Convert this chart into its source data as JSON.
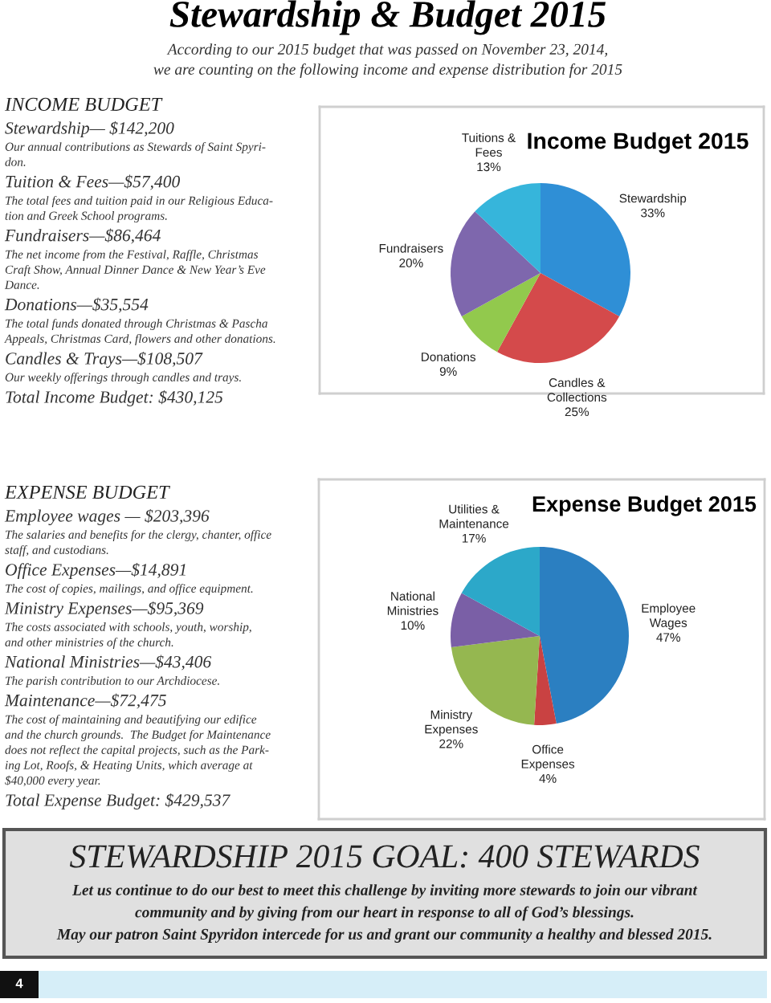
{
  "chart_data": [
    {
      "type": "other",
      "title": "Stewardship & Budget 2015",
      "subtitle": "According to our 2015 budget that was passed on November 23, 2014,\nwe are counting on the following income and expense distribution for 2015",
      "xlabel": "INCOME BUDGET",
      "annotations": [
        "Stewardship— $142,200",
        "Our annual contributions as Stewards of Saint Spyri-\ndon.",
        "Tuition & Fees—$57,400",
        "The total fees and tuition paid in our Religious Educa-\ntion and Greek School programs.",
        "Fundraisers—$86,464",
        "The net income from the Festival, Raffle, Christmas\nCraft Show, Annual Dinner Dance & New Year’s Eve\nDance.",
        "Donations—$35,554",
        "The total funds donated through Christmas & Pascha\nAppeals, Christmas Card, flowers and other donations.",
        "Candles & Trays—$108,507",
        "Our weekly offerings through candles and trays.",
        "Total Income Budget: $430,125"
      ]
    },
    {
      "type": "pie",
      "title": "Income Budget 2015",
      "categories": [
        "Stewardship",
        "Candles &\nCollections",
        "Donations",
        "Fundraisers",
        "Tuitions &\nFees"
      ],
      "values": [
        33,
        25,
        9,
        20,
        13
      ],
      "value_labels": [
        "33%",
        "25%",
        "9%",
        "20%",
        "13%"
      ],
      "colors": [
        "#2f8fd6",
        "#d44a4b",
        "#92c94d",
        "#7e67ad",
        "#36b5db"
      ]
    },
    {
      "type": "other",
      "xlabel": "EXPENSE BUDGET",
      "annotations": [
        "Employee wages — $203,396",
        "The salaries and benefits for the clergy, chanter, office\nstaff, and custodians.",
        "Office Expenses—$14,891",
        "The cost of copies, mailings, and office equipment.",
        "Ministry Expenses—$95,369",
        "The costs associated with schools, youth, worship,\nand other ministries of the church.",
        "National Ministries—$43,406",
        "The parish contribution to our Archdiocese.",
        "Maintenance—$72,475",
        "The cost of maintaining and beautifying our edifice\nand the church grounds.  The Budget for Maintenance\ndoes not reflect the capital projects, such as the Park-\ning Lot, Roofs, & Heating Units, which average at\n$40,000 every year.",
        "Total Expense Budget: $429,537"
      ]
    },
    {
      "type": "pie",
      "title": "Expense Budget 2015",
      "categories": [
        "Employee\nWages",
        "Office\nExpenses",
        "Ministry\nExpenses",
        "National\nMinistries",
        "Utilities &\nMaintenance"
      ],
      "values": [
        47,
        4,
        22,
        10,
        17
      ],
      "value_labels": [
        "47%",
        "4%",
        "22%",
        "10%",
        "17%"
      ],
      "colors": [
        "#2b7fc1",
        "#c94242",
        "#95b750",
        "#7a5fa6",
        "#2ca8c9"
      ]
    },
    {
      "type": "other",
      "title": "STEWARDSHIP 2015 GOAL: 400 STEWARDS",
      "annotations": [
        "Let us continue to do our best to meet this challenge by inviting more stewards to join our vibrant",
        "community and by giving from our heart in response to all of God’s blessings.",
        "May our patron Saint Spyridon intercede for us and grant our community a healthy and blessed 2015.",
        "4"
      ]
    }
  ]
}
